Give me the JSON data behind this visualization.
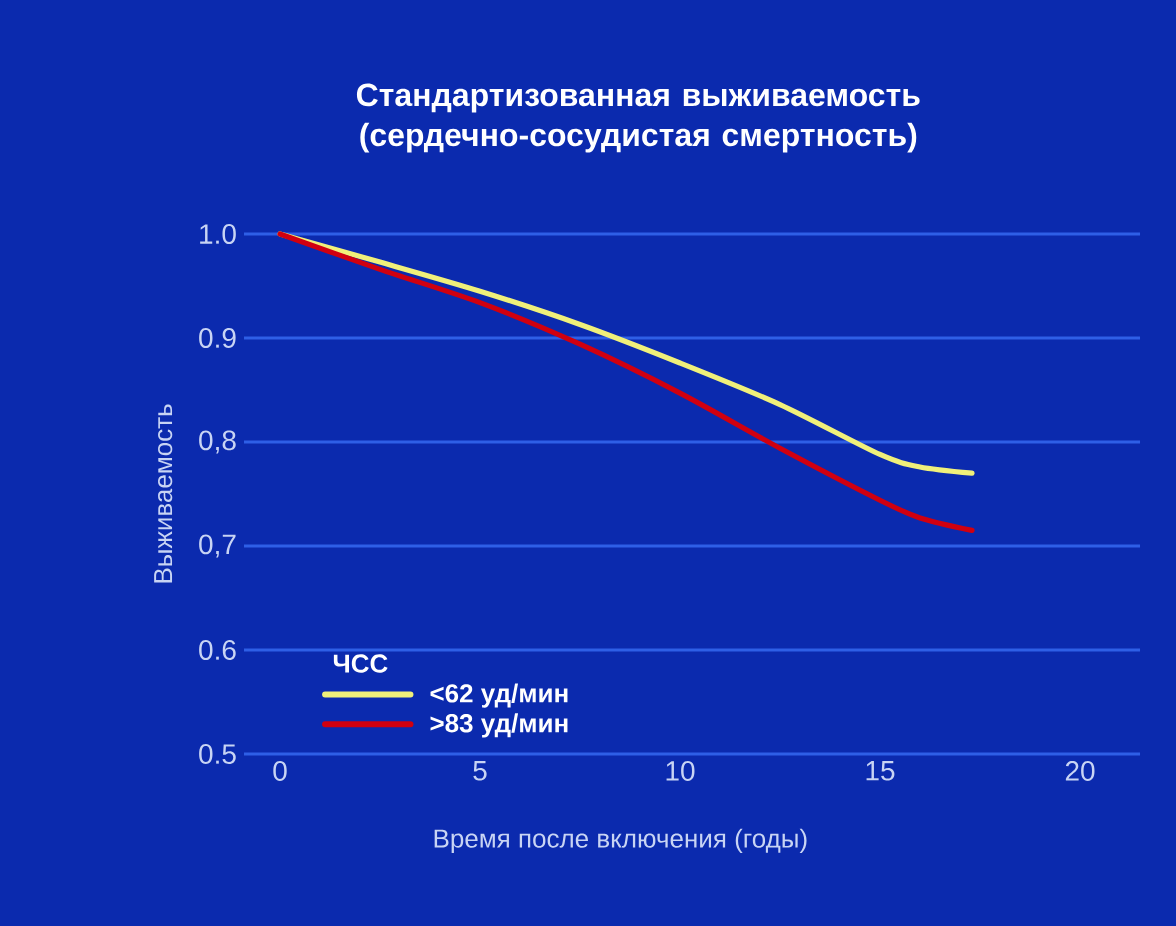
{
  "chart_data": {
    "type": "line",
    "title": "Стандартизованная выживаемость (сердечно-сосудистая смертность)",
    "xlabel": "Время после включения (годы)",
    "ylabel": "Выживаемость",
    "legend_title": "ЧСС",
    "xlim": [
      -0.9,
      21.5
    ],
    "ylim": [
      0.5,
      1.0
    ],
    "xticks": [
      0,
      5,
      10,
      15,
      20
    ],
    "yticks": [
      {
        "value": 0.5,
        "label": "0.5"
      },
      {
        "value": 0.6,
        "label": "0.6"
      },
      {
        "value": 0.7,
        "label": "0,7"
      },
      {
        "value": 0.8,
        "label": "0,8"
      },
      {
        "value": 0.9,
        "label": "0.9"
      },
      {
        "value": 1.0,
        "label": "1.0"
      }
    ],
    "grid": "y",
    "legend": "bottom left",
    "marker": "none",
    "line_style": "solid",
    "series": [
      {
        "name": "<62 уд/мин",
        "color": "#f0f07a",
        "x": [
          0,
          2.5,
          5,
          7.5,
          10,
          12.5,
          15,
          16,
          17.3
        ],
        "values": [
          1.0,
          0.973,
          0.945,
          0.913,
          0.876,
          0.836,
          0.788,
          0.776,
          0.77
        ]
      },
      {
        "name": ">83 уд/мин",
        "color": "#d00010",
        "x": [
          0,
          2.5,
          5,
          7.5,
          10,
          12.5,
          15,
          16,
          17.3
        ],
        "values": [
          1.0,
          0.966,
          0.934,
          0.894,
          0.847,
          0.794,
          0.744,
          0.727,
          0.715
        ]
      }
    ]
  }
}
